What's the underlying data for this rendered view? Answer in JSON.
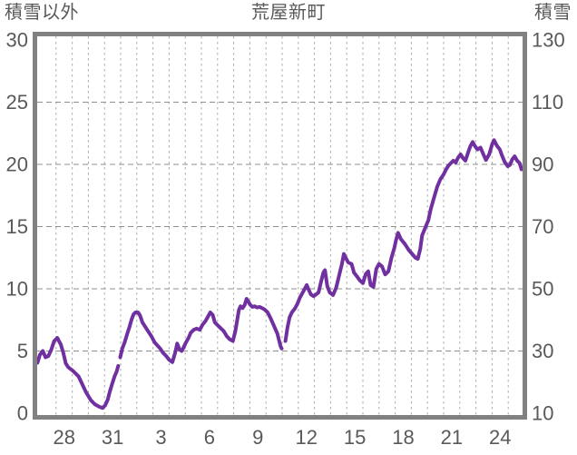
{
  "header": {
    "left_axis_title": "積雪以外",
    "title": "荒屋新町",
    "right_axis_title": "積雪"
  },
  "colors": {
    "line": "#7030A0",
    "frame": "#818181",
    "grid_vertical": "#ababab",
    "grid_horizontal": "#8f8f8f",
    "text": "#595959",
    "background": "#ffffff"
  },
  "chart_data": {
    "type": "line",
    "title": "荒屋新町",
    "grid": "dashed, vertical line each day, horizontal line each labeled tick",
    "legend_position": "none",
    "left_axis": {
      "title": "積雪以外",
      "ticks": [
        "0",
        "5",
        "10",
        "15",
        "20",
        "25",
        "30"
      ],
      "tick_values": [
        0,
        5,
        10,
        15,
        20,
        25,
        30
      ],
      "range": [
        0,
        30
      ]
    },
    "right_axis": {
      "title": "積雪",
      "ticks": [
        "10",
        "30",
        "50",
        "70",
        "90",
        "110",
        "130"
      ],
      "tick_values": [
        10,
        30,
        50,
        70,
        90,
        110,
        130
      ],
      "range": [
        10,
        130
      ],
      "relation_to_left": "right = 4 * left + 10"
    },
    "x_axis": {
      "tick_labels": [
        "28",
        "31",
        "3",
        "6",
        "9",
        "12",
        "15",
        "18",
        "21",
        "24"
      ],
      "tick_positions_days": [
        0.5,
        3.5,
        6.5,
        9.5,
        12.5,
        15.5,
        18.5,
        21.5,
        24.5,
        27.5
      ],
      "unit": "days since 00:00 of the first labeled day (28th), month boundary after the 31st",
      "range_days": [
        -1.15,
        28.85
      ],
      "gridline_days_start": 0,
      "gridline_days_end": 28
    },
    "series": [
      {
        "name": "積雪",
        "color": "#7030A0",
        "value_axis": "left-axis units (multiply by 4 and add 10 for 積雪 cm scale)",
        "segments": [
          [
            [
              -1.15,
              4.05
            ],
            [
              -1.0,
              4.7
            ],
            [
              -0.82,
              5.0
            ],
            [
              -0.65,
              4.5
            ],
            [
              -0.48,
              4.6
            ],
            [
              -0.3,
              5.1
            ],
            [
              -0.12,
              5.8
            ],
            [
              0.08,
              6.05
            ],
            [
              0.3,
              5.5
            ],
            [
              0.45,
              4.85
            ],
            [
              0.6,
              4.0
            ],
            [
              0.75,
              3.7
            ],
            [
              1.05,
              3.4
            ],
            [
              1.4,
              2.95
            ],
            [
              1.85,
              1.7
            ],
            [
              2.15,
              1.05
            ],
            [
              2.4,
              0.72
            ],
            [
              2.7,
              0.5
            ],
            [
              2.88,
              0.42
            ],
            [
              3.05,
              0.65
            ],
            [
              3.2,
              1.1
            ],
            [
              3.33,
              1.75
            ],
            [
              3.47,
              2.35
            ],
            [
              3.62,
              2.95
            ],
            [
              3.75,
              3.35
            ],
            [
              3.85,
              3.8
            ]
          ],
          [
            [
              3.97,
              4.5
            ],
            [
              4.1,
              5.2
            ],
            [
              4.25,
              5.7
            ],
            [
              4.4,
              6.35
            ],
            [
              4.55,
              6.95
            ],
            [
              4.68,
              7.55
            ],
            [
              4.8,
              7.95
            ],
            [
              4.92,
              8.1
            ],
            [
              5.08,
              8.1
            ],
            [
              5.2,
              7.85
            ],
            [
              5.35,
              7.3
            ],
            [
              5.52,
              6.95
            ],
            [
              5.72,
              6.55
            ],
            [
              5.9,
              6.2
            ],
            [
              6.1,
              5.7
            ],
            [
              6.27,
              5.45
            ],
            [
              6.45,
              5.2
            ],
            [
              6.63,
              4.85
            ],
            [
              6.82,
              4.6
            ],
            [
              7.0,
              4.3
            ],
            [
              7.2,
              4.1
            ],
            [
              7.38,
              4.9
            ],
            [
              7.5,
              5.6
            ],
            [
              7.65,
              5.1
            ],
            [
              7.78,
              5.0
            ],
            [
              7.88,
              5.25
            ],
            [
              8.05,
              5.7
            ],
            [
              8.22,
              6.1
            ],
            [
              8.33,
              6.45
            ],
            [
              8.52,
              6.7
            ],
            [
              8.7,
              6.8
            ],
            [
              8.9,
              6.7
            ],
            [
              9.07,
              7.1
            ],
            [
              9.25,
              7.4
            ],
            [
              9.42,
              7.8
            ],
            [
              9.55,
              8.1
            ],
            [
              9.7,
              7.9
            ],
            [
              9.83,
              7.3
            ],
            [
              10.1,
              6.95
            ],
            [
              10.38,
              6.6
            ],
            [
              10.57,
              6.2
            ],
            [
              10.75,
              5.95
            ],
            [
              10.95,
              5.8
            ],
            [
              11.1,
              6.6
            ],
            [
              11.22,
              7.5
            ],
            [
              11.32,
              8.3
            ],
            [
              11.42,
              8.6
            ],
            [
              11.55,
              8.45
            ],
            [
              11.68,
              8.7
            ],
            [
              11.8,
              9.2
            ],
            [
              11.9,
              9.0
            ],
            [
              12.0,
              8.75
            ],
            [
              12.15,
              8.55
            ],
            [
              12.3,
              8.6
            ],
            [
              12.45,
              8.5
            ],
            [
              12.6,
              8.55
            ],
            [
              12.75,
              8.45
            ],
            [
              12.9,
              8.35
            ],
            [
              13.1,
              8.1
            ],
            [
              13.3,
              7.6
            ],
            [
              13.5,
              7.0
            ],
            [
              13.7,
              6.4
            ],
            [
              13.82,
              5.8
            ],
            [
              13.9,
              5.4
            ],
            [
              13.97,
              5.2
            ]
          ],
          [
            [
              14.2,
              5.8
            ],
            [
              14.33,
              6.9
            ],
            [
              14.46,
              7.7
            ],
            [
              14.6,
              8.1
            ],
            [
              14.78,
              8.4
            ],
            [
              14.95,
              8.8
            ],
            [
              15.1,
              9.3
            ],
            [
              15.25,
              9.65
            ],
            [
              15.4,
              10.0
            ],
            [
              15.52,
              10.3
            ],
            [
              15.65,
              9.9
            ],
            [
              15.78,
              9.55
            ],
            [
              15.95,
              9.4
            ],
            [
              16.1,
              9.55
            ],
            [
              16.25,
              9.7
            ],
            [
              16.4,
              10.5
            ],
            [
              16.55,
              11.3
            ],
            [
              16.65,
              11.5
            ],
            [
              16.8,
              10.2
            ],
            [
              16.95,
              9.7
            ],
            [
              17.15,
              9.5
            ],
            [
              17.35,
              10.1
            ],
            [
              17.55,
              11.2
            ],
            [
              17.7,
              12.0
            ],
            [
              17.82,
              12.8
            ],
            [
              17.95,
              12.45
            ],
            [
              18.1,
              12.1
            ],
            [
              18.3,
              12.0
            ],
            [
              18.45,
              11.3
            ],
            [
              18.6,
              11.05
            ],
            [
              18.8,
              10.7
            ],
            [
              19.0,
              10.45
            ],
            [
              19.18,
              11.2
            ],
            [
              19.33,
              11.4
            ],
            [
              19.48,
              10.3
            ],
            [
              19.65,
              10.15
            ],
            [
              19.83,
              11.6
            ],
            [
              20.0,
              12.0
            ],
            [
              20.18,
              11.8
            ],
            [
              20.38,
              11.15
            ],
            [
              20.58,
              11.4
            ],
            [
              20.77,
              12.5
            ],
            [
              20.95,
              13.3
            ],
            [
              21.05,
              13.9
            ],
            [
              21.18,
              14.5
            ],
            [
              21.35,
              14.0
            ],
            [
              21.6,
              13.6
            ],
            [
              21.85,
              13.1
            ],
            [
              22.05,
              12.8
            ],
            [
              22.25,
              12.5
            ],
            [
              22.4,
              12.4
            ],
            [
              22.55,
              13.2
            ],
            [
              22.67,
              14.3
            ],
            [
              22.8,
              14.7
            ],
            [
              22.92,
              15.1
            ],
            [
              23.05,
              15.5
            ],
            [
              23.2,
              16.4
            ],
            [
              23.4,
              17.3
            ],
            [
              23.6,
              18.2
            ],
            [
              23.8,
              18.8
            ],
            [
              24.0,
              19.2
            ],
            [
              24.15,
              19.6
            ],
            [
              24.3,
              19.9
            ],
            [
              24.45,
              20.1
            ],
            [
              24.6,
              20.3
            ],
            [
              24.75,
              20.15
            ],
            [
              24.9,
              20.55
            ],
            [
              25.05,
              20.8
            ],
            [
              25.2,
              20.5
            ],
            [
              25.35,
              20.3
            ],
            [
              25.5,
              20.9
            ],
            [
              25.65,
              21.45
            ],
            [
              25.8,
              21.8
            ],
            [
              25.95,
              21.45
            ],
            [
              26.1,
              21.2
            ],
            [
              26.28,
              21.35
            ],
            [
              26.45,
              20.85
            ],
            [
              26.62,
              20.35
            ],
            [
              26.82,
              20.8
            ],
            [
              27.0,
              21.6
            ],
            [
              27.12,
              21.95
            ],
            [
              27.3,
              21.5
            ],
            [
              27.48,
              21.2
            ],
            [
              27.62,
              20.7
            ],
            [
              27.78,
              20.2
            ],
            [
              27.97,
              19.85
            ],
            [
              28.1,
              19.95
            ],
            [
              28.25,
              20.4
            ],
            [
              28.4,
              20.65
            ],
            [
              28.55,
              20.3
            ],
            [
              28.7,
              20.1
            ],
            [
              28.82,
              19.6
            ]
          ]
        ]
      }
    ]
  }
}
